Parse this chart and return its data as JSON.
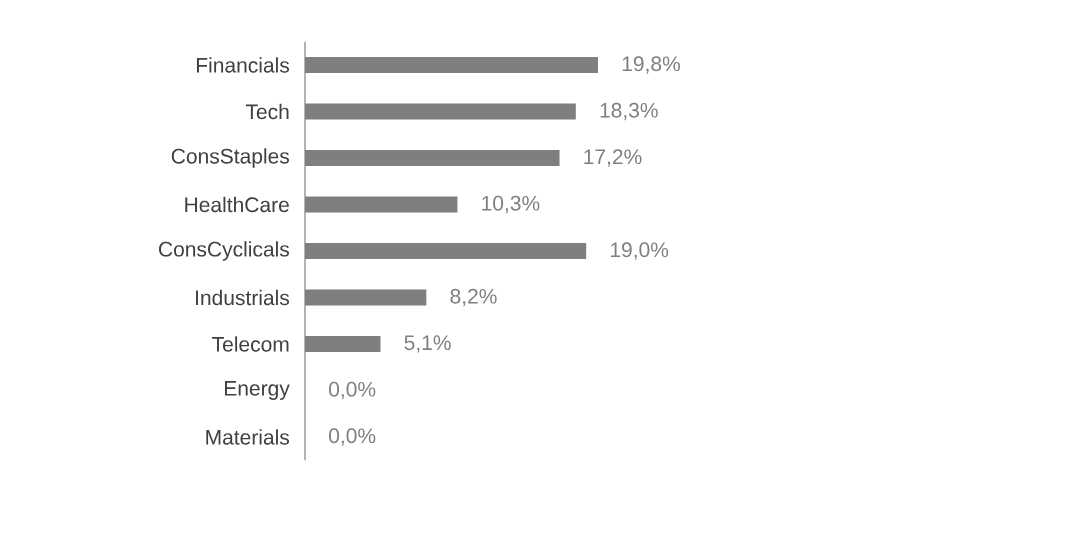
{
  "chart_data": {
    "type": "bar",
    "orientation": "horizontal",
    "categories": [
      "Financials",
      "Tech",
      "ConsStaples",
      "HealthCare",
      "ConsCyclicals",
      "Industrials",
      "Telecom",
      "Energy",
      "Materials"
    ],
    "values": [
      19.8,
      18.3,
      17.2,
      10.3,
      19.0,
      8.2,
      5.1,
      0.0,
      0.0
    ],
    "value_labels": [
      "19,8%",
      "18,3%",
      "17,2%",
      "10,3%",
      "19,0%",
      "8,2%",
      "5,1%",
      "0,0%",
      "0,0%"
    ],
    "color": "#7f7f7f"
  }
}
